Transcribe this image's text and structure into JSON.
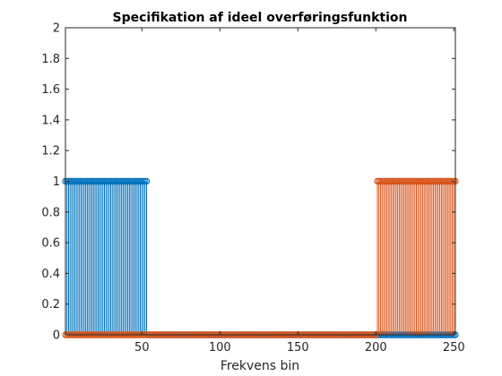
{
  "chart_data": {
    "type": "stem",
    "title": "Specifikation af ideel overføringsfunktion",
    "xlabel": "Frekvens bin",
    "ylabel": "",
    "xlim": [
      1,
      251
    ],
    "ylim": [
      0,
      2
    ],
    "xticks": [
      50,
      100,
      150,
      200,
      250
    ],
    "yticks": [
      0,
      0.2,
      0.4,
      0.6,
      0.8,
      1,
      1.2,
      1.4,
      1.6,
      1.8,
      2
    ],
    "grid": false,
    "marker": "circle",
    "x_start": 1,
    "x_end": 251,
    "series": [
      {
        "color": "#0072BD",
        "pattern": "value 1 for bins 1–53, value 0 for bins 54–251",
        "high_ranges": [
          [
            1,
            53
          ]
        ]
      },
      {
        "color": "#D95319",
        "pattern": "value 1 for bins 201–251, value 0 for bins 1–200",
        "high_ranges": [
          [
            201,
            251
          ]
        ]
      }
    ]
  }
}
